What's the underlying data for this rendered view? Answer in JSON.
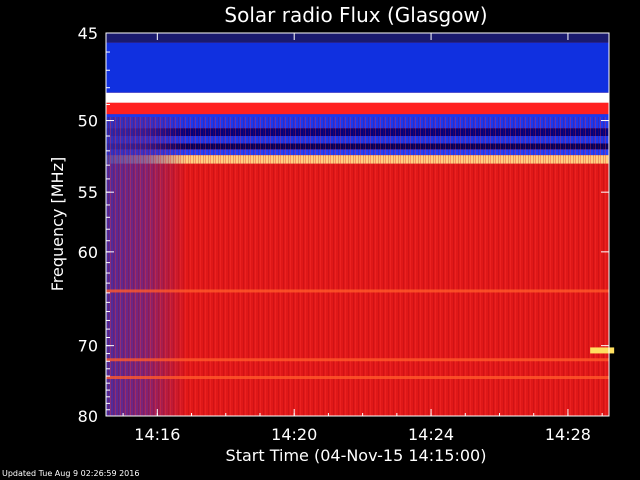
{
  "chart_data": {
    "type": "heatmap",
    "title": "Solar radio Flux (Glasgow)",
    "xlabel": "Start Time (04-Nov-15 14:15:00)",
    "ylabel": "Frequency [MHz]",
    "x_unit": "minutes since 14:15",
    "xlim": [
      14.5,
      29.2
    ],
    "ylim": [
      45,
      80
    ],
    "y_scale": "reciprocal",
    "x_ticks": [
      {
        "value": 16,
        "label": "14:16"
      },
      {
        "value": 20,
        "label": "14:20"
      },
      {
        "value": 24,
        "label": "14:24"
      },
      {
        "value": 28,
        "label": "14:28"
      }
    ],
    "y_ticks": [
      {
        "value": 45,
        "label": "45"
      },
      {
        "value": 50,
        "label": "50"
      },
      {
        "value": 55,
        "label": "55"
      },
      {
        "value": 60,
        "label": "60"
      },
      {
        "value": 70,
        "label": "70"
      },
      {
        "value": 80,
        "label": "80"
      }
    ],
    "bands": [
      {
        "from": 45.0,
        "to": 45.5,
        "color": "#1a1a6e"
      },
      {
        "from": 45.5,
        "to": 48.3,
        "color": "#1030e0"
      },
      {
        "from": 48.3,
        "to": 48.9,
        "color": "#ffffff"
      },
      {
        "from": 48.9,
        "to": 49.6,
        "color": "#ff2020"
      },
      {
        "from": 49.6,
        "to": 50.5,
        "color": "#1a38f0"
      },
      {
        "from": 50.5,
        "to": 51.0,
        "color": "#000080"
      },
      {
        "from": 51.0,
        "to": 51.5,
        "color": "#1a38f0"
      },
      {
        "from": 51.5,
        "to": 51.9,
        "color": "#000060"
      },
      {
        "from": 51.9,
        "to": 52.3,
        "color": "#2040ff"
      },
      {
        "from": 52.3,
        "to": 52.9,
        "color": "#ffd080"
      },
      {
        "from": 52.9,
        "to": 80.0,
        "color": "#e01818"
      }
    ],
    "hot_lines": [
      63.8,
      71.8,
      74.2
    ],
    "hot_spots": [
      {
        "x": 29.0,
        "y": 70.6
      }
    ]
  },
  "footer": "Updated Tue Aug  9 02:26:59 2016"
}
